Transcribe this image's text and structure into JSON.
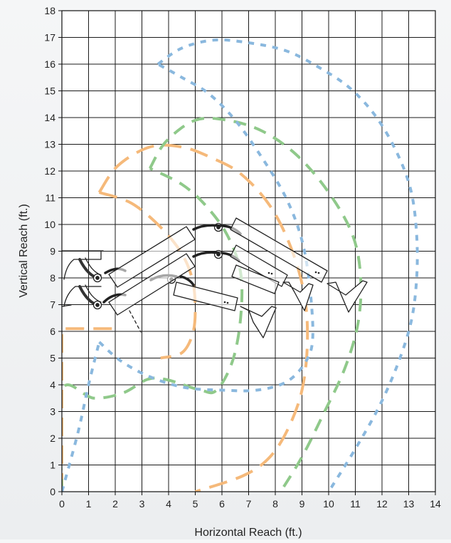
{
  "chart_data": {
    "type": "line",
    "title": "",
    "xlabel": "Horizontal Reach (ft.)",
    "ylabel": "Vertical Reach (ft.)",
    "xlim": [
      0,
      14
    ],
    "ylim": [
      0,
      18
    ],
    "x_ticks": [
      0,
      1,
      2,
      3,
      4,
      5,
      6,
      7,
      8,
      9,
      10,
      11,
      12,
      13,
      14
    ],
    "y_ticks": [
      0,
      1,
      2,
      3,
      4,
      5,
      6,
      7,
      8,
      9,
      10,
      11,
      12,
      13,
      14,
      15,
      16,
      17,
      18
    ],
    "grid": true,
    "legend": "none",
    "series": [
      {
        "color": "#f5b97a",
        "dash": "long-dash",
        "points": [
          [
            0,
            0
          ],
          [
            0,
            6.1
          ],
          [
            1.9,
            6.1
          ]
        ]
      },
      {
        "color": "#f5b97a",
        "dash": "long-dash",
        "points": [
          [
            1.4,
            11.2
          ],
          [
            2.1,
            12.2
          ],
          [
            3.3,
            12.9
          ],
          [
            4.5,
            12.9
          ],
          [
            5.6,
            12.5
          ],
          [
            6.7,
            11.9
          ],
          [
            7.8,
            10.7
          ],
          [
            8.6,
            9.1
          ],
          [
            9.1,
            7.3
          ],
          [
            9.2,
            5.5
          ],
          [
            9.0,
            3.8
          ],
          [
            8.5,
            2.4
          ],
          [
            7.8,
            1.3
          ],
          [
            6.8,
            0.6
          ],
          [
            5.0,
            0.0
          ]
        ]
      },
      {
        "color": "#f5b97a",
        "dash": "long-dash",
        "points": [
          [
            1.4,
            11.2
          ],
          [
            2.6,
            10.8
          ],
          [
            3.7,
            9.9
          ],
          [
            4.5,
            8.9
          ],
          [
            4.9,
            7.9
          ],
          [
            5.0,
            6.8
          ],
          [
            4.9,
            5.9
          ],
          [
            4.5,
            5.2
          ],
          [
            3.7,
            5.0
          ]
        ]
      },
      {
        "color": "#8fc98a",
        "dash": "medium-dash",
        "points": [
          [
            0,
            0
          ],
          [
            0,
            3.8
          ],
          [
            1.2,
            3.5
          ],
          [
            2.3,
            3.7
          ],
          [
            3.2,
            4.2
          ],
          [
            3.9,
            4.2
          ],
          [
            5.2,
            3.8
          ],
          [
            5.8,
            3.8
          ],
          [
            6.4,
            4.9
          ],
          [
            6.7,
            6.5
          ],
          [
            6.7,
            8.2
          ],
          [
            6.2,
            9.6
          ],
          [
            5.4,
            10.7
          ],
          [
            4.5,
            11.5
          ],
          [
            3.3,
            12.1
          ]
        ]
      },
      {
        "color": "#8fc98a",
        "dash": "medium-dash",
        "points": [
          [
            3.3,
            12.1
          ],
          [
            3.9,
            13.1
          ],
          [
            5.0,
            13.9
          ],
          [
            6.2,
            13.9
          ],
          [
            7.5,
            13.5
          ],
          [
            8.8,
            12.6
          ],
          [
            10.0,
            11.2
          ],
          [
            10.9,
            9.6
          ],
          [
            11.2,
            8.0
          ],
          [
            11.1,
            6.3
          ],
          [
            10.6,
            4.6
          ],
          [
            9.8,
            2.9
          ],
          [
            9.0,
            1.3
          ],
          [
            8.2,
            0.0
          ]
        ]
      },
      {
        "color": "#8ab8de",
        "dash": "short-dash",
        "points": [
          [
            0,
            0
          ],
          [
            0.6,
            2.2
          ],
          [
            1.0,
            4.0
          ],
          [
            1.4,
            5.6
          ]
        ]
      },
      {
        "color": "#8ab8de",
        "dash": "short-dash",
        "points": [
          [
            1.4,
            5.6
          ],
          [
            2.2,
            4.9
          ],
          [
            3.3,
            4.3
          ],
          [
            4.6,
            3.9
          ],
          [
            6.0,
            3.8
          ],
          [
            7.3,
            3.8
          ],
          [
            8.4,
            4.1
          ],
          [
            9.1,
            4.8
          ],
          [
            9.4,
            5.7
          ],
          [
            9.3,
            7.6
          ],
          [
            9.0,
            9.4
          ],
          [
            8.4,
            11.0
          ],
          [
            7.5,
            12.5
          ],
          [
            6.5,
            13.9
          ],
          [
            5.5,
            14.9
          ],
          [
            4.5,
            15.5
          ],
          [
            3.6,
            16.0
          ]
        ]
      },
      {
        "color": "#8ab8de",
        "dash": "short-dash",
        "points": [
          [
            3.6,
            16.0
          ],
          [
            4.5,
            16.6
          ],
          [
            5.7,
            16.9
          ],
          [
            7.0,
            16.8
          ],
          [
            8.4,
            16.5
          ],
          [
            9.6,
            15.9
          ],
          [
            10.8,
            15.1
          ],
          [
            11.8,
            14.0
          ],
          [
            12.6,
            12.6
          ],
          [
            13.1,
            11.2
          ],
          [
            13.3,
            9.6
          ],
          [
            13.3,
            8.0
          ],
          [
            13.1,
            6.4
          ],
          [
            12.6,
            4.8
          ],
          [
            11.9,
            3.2
          ],
          [
            11.0,
            1.6
          ],
          [
            10.0,
            0.0
          ]
        ]
      }
    ]
  }
}
